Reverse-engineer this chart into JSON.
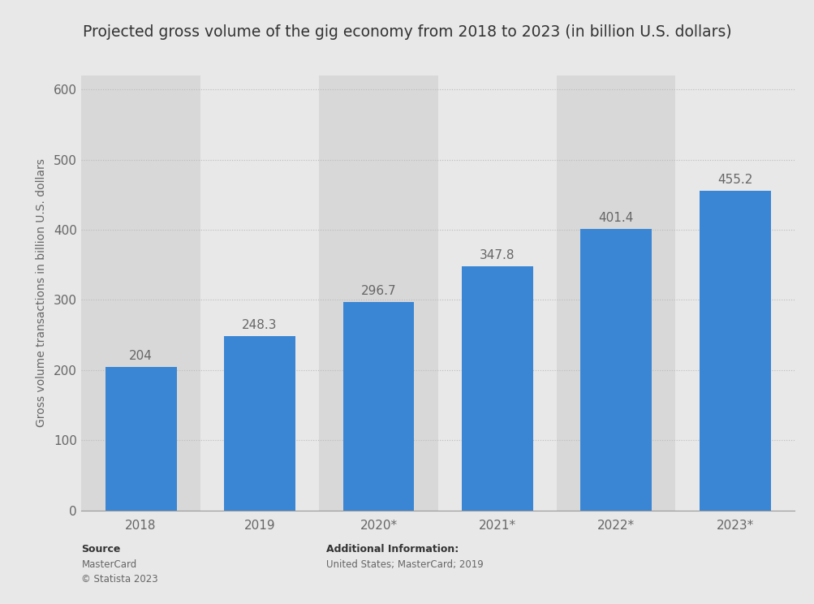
{
  "title": "Projected gross volume of the gig economy from 2018 to 2023 (in billion U.S. dollars)",
  "categories": [
    "2018",
    "2019",
    "2020*",
    "2021*",
    "2022*",
    "2023*"
  ],
  "values": [
    204,
    248.3,
    296.7,
    347.8,
    401.4,
    455.2
  ],
  "bar_color": "#3a86d4",
  "ylabel": "Gross volume transactions in billion U.S. dollars",
  "ylim": [
    0,
    620
  ],
  "yticks": [
    0,
    100,
    200,
    300,
    400,
    500,
    600
  ],
  "background_color": "#e8e8e8",
  "col_bg_light": "#e8e8e8",
  "col_bg_dark": "#d8d8d8",
  "title_fontsize": 13.5,
  "label_fontsize": 10,
  "tick_fontsize": 11,
  "value_fontsize": 11,
  "source_text": "Source",
  "source_line1": "MasterCard",
  "source_line2": "© Statista 2023",
  "add_info_text": "Additional Information:",
  "add_info_line1": "United States; MasterCard; 2019",
  "grid_color": "#ffffff",
  "axis_color": "#999999",
  "text_color_dark": "#333333",
  "text_color_medium": "#666666",
  "text_color_light": "#999999"
}
